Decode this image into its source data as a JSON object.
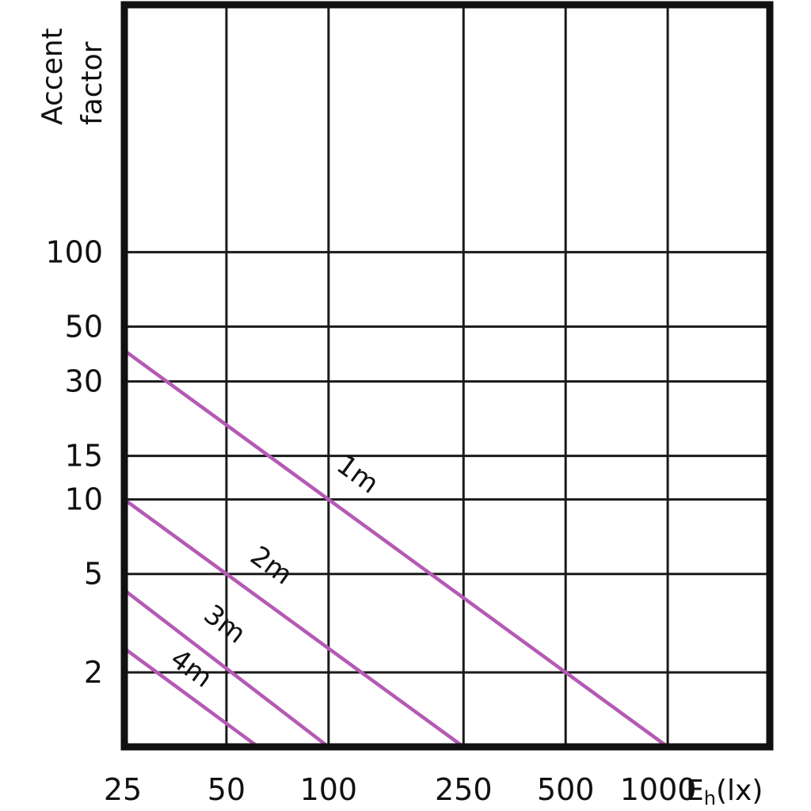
{
  "chart_data": {
    "type": "line",
    "title": "",
    "ylabel_line1": "Accent",
    "ylabel_line2": "factor",
    "xlabel_main": "E",
    "xlabel_sub": "h",
    "xlabel_unit": "(lx)",
    "xscale": "log",
    "yscale": "log",
    "grid": true,
    "x_ticks": [
      25,
      50,
      100,
      250,
      500,
      1000
    ],
    "x_tick_labels": [
      "25",
      "50",
      "100",
      "250",
      "500",
      "1000"
    ],
    "x_grid_extra": [
      2000
    ],
    "y_ticks": [
      2,
      5,
      10,
      15,
      30,
      50,
      100
    ],
    "y_tick_labels": [
      "2",
      "5",
      "10",
      "15",
      "30",
      "50",
      "100"
    ],
    "y_grid_extra": [
      1,
      1000
    ],
    "xlim": [
      25,
      2000
    ],
    "ylim": [
      1,
      1000
    ],
    "line_color": "#b45ab4",
    "series": [
      {
        "name": "1m",
        "x": [
          25,
          1000
        ],
        "y": [
          40,
          1.0
        ]
      },
      {
        "name": "2m",
        "x": [
          25,
          250
        ],
        "y": [
          10,
          1.0
        ]
      },
      {
        "name": "3m",
        "x": [
          25,
          100
        ],
        "y": [
          4.3,
          1.0
        ]
      },
      {
        "name": "4m",
        "x": [
          25,
          62
        ],
        "y": [
          2.5,
          1.0
        ]
      }
    ]
  }
}
